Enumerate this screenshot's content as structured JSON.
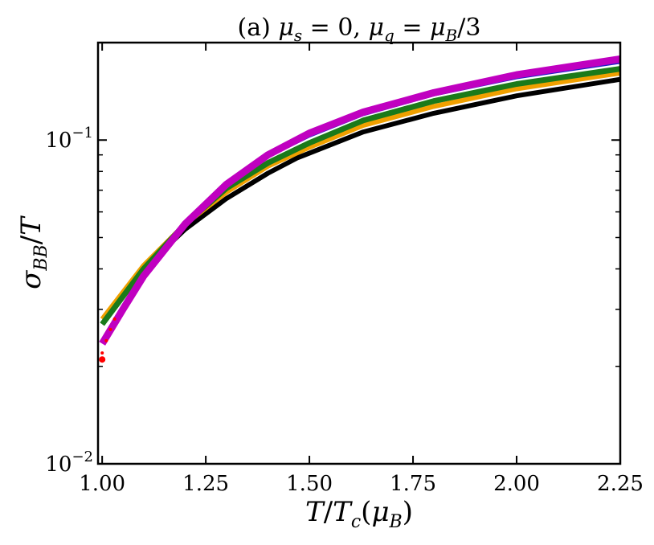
{
  "chart_data": {
    "type": "line",
    "title": "(a) μ_s = 0, μ_q = μ_B/3",
    "xlabel": "T/T_c(μ_B)",
    "ylabel": "σ_BB/T",
    "xlim": [
      0.99,
      2.25
    ],
    "ylim": [
      0.01,
      0.2
    ],
    "yscale": "log",
    "x_ticks": [
      1.0,
      1.25,
      1.5,
      1.75,
      2.0,
      2.25
    ],
    "x_tick_labels": [
      "1.00",
      "1.25",
      "1.50",
      "1.75",
      "2.00",
      "2.25"
    ],
    "y_major_ticks": [
      0.01,
      0.1
    ],
    "y_tick_labels": [
      {
        "base": "10",
        "exp": "−2"
      },
      {
        "base": "10",
        "exp": "−1"
      }
    ],
    "grid": false,
    "series": [
      {
        "color": "#000000",
        "width": 6,
        "x": [
          1.0,
          1.1,
          1.2,
          1.3,
          1.4,
          1.47,
          1.63,
          1.8,
          2.0,
          2.25
        ],
        "y": [
          0.027,
          0.04,
          0.053,
          0.066,
          0.079,
          0.088,
          0.106,
          0.121,
          0.137,
          0.154
        ]
      },
      {
        "color": "#f0a000",
        "width": 6,
        "x": [
          1.0,
          1.1,
          1.2,
          1.3,
          1.4,
          1.5,
          1.63,
          1.8,
          2.0,
          2.25
        ],
        "y": [
          0.028,
          0.041,
          0.055,
          0.069,
          0.083,
          0.095,
          0.111,
          0.127,
          0.144,
          0.161
        ]
      },
      {
        "color": "#1e1ec8",
        "width": 4,
        "x": [
          1.0,
          1.1,
          1.2,
          1.3,
          1.4,
          1.5,
          1.63,
          1.8,
          2.0,
          2.25
        ],
        "y": [
          0.024,
          0.038,
          0.055,
          0.072,
          0.089,
          0.103,
          0.12,
          0.138,
          0.156,
          0.174
        ]
      },
      {
        "color": "#1a7a1a",
        "width": 7,
        "x": [
          1.0,
          1.1,
          1.2,
          1.3,
          1.4,
          1.5,
          1.63,
          1.8,
          2.0,
          2.25
        ],
        "y": [
          0.027,
          0.04,
          0.055,
          0.071,
          0.085,
          0.098,
          0.115,
          0.132,
          0.149,
          0.166
        ]
      },
      {
        "color": "#c000c0",
        "width": 9,
        "x": [
          1.0,
          1.05,
          1.1,
          1.2,
          1.3,
          1.4,
          1.5,
          1.63,
          1.8,
          2.0,
          2.25
        ],
        "y": [
          0.0235,
          0.03,
          0.038,
          0.055,
          0.073,
          0.09,
          0.105,
          0.122,
          0.14,
          0.159,
          0.178
        ]
      }
    ],
    "markers": {
      "color": "#ff0000",
      "x": [
        1.0,
        1.0,
        1.01,
        1.02,
        1.03
      ],
      "y": [
        0.021,
        0.022,
        0.024,
        0.026,
        0.028
      ]
    }
  }
}
